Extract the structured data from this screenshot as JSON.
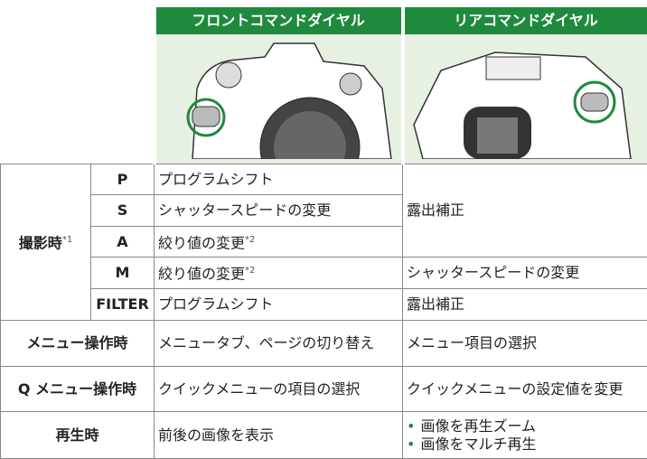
{
  "header": {
    "front": "フロントコマンドダイヤル",
    "rear": "リアコマンドダイヤル"
  },
  "shooting": {
    "label": "撮影時",
    "note": "*1",
    "rear_pas": "露出補正",
    "modes": [
      {
        "mode": "P",
        "front": "プログラムシフト"
      },
      {
        "mode": "S",
        "front": "シャッタースピードの変更"
      },
      {
        "mode": "A",
        "front": "絞り値の変更",
        "note": "*2"
      },
      {
        "mode": "M",
        "front": "絞り値の変更",
        "note": "*2",
        "rear": "シャッタースピードの変更"
      },
      {
        "mode": "FILTER",
        "front": "プログラムシフト",
        "rear": "露出補正"
      }
    ]
  },
  "rows": [
    {
      "label": "メニュー操作時",
      "front": "メニュータブ、ページの切り替え",
      "rear": "メニュー項目の選択"
    },
    {
      "label": "Q メニュー操作時",
      "front": "クイックメニューの項目の選択",
      "rear": "クイックメニューの設定値を変更"
    },
    {
      "label": "再生時",
      "front": "前後の画像を表示",
      "rear": [
        "画像を再生ズーム",
        "画像をマルチ再生"
      ]
    }
  ]
}
